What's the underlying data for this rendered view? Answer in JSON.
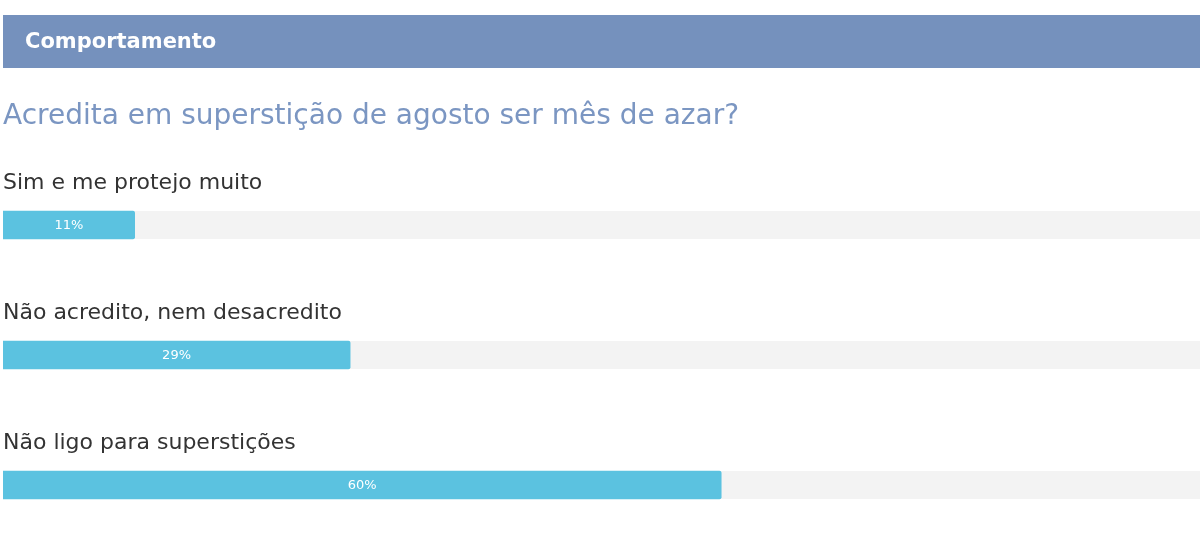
{
  "chart_data": {
    "type": "bar",
    "orientation": "horizontal",
    "title": "Comportamento",
    "subtitle": "Acredita em superstição de agosto ser mês de azar?",
    "categories": [
      "Sim e me protejo muito",
      "Não acredito, nem desacredito",
      "Não ligo para superstições"
    ],
    "values": [
      11,
      29,
      60
    ],
    "value_labels": [
      "11%",
      "29%",
      "60%"
    ],
    "color": "#5bc2e0",
    "xlim": [
      0,
      100
    ]
  }
}
